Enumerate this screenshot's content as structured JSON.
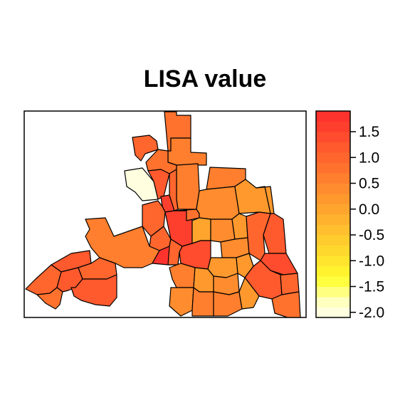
{
  "title": "LISA value",
  "legend": {
    "range": [
      -2.1,
      1.9
    ],
    "colors": [
      "#FFFFE0",
      "#FFFFBF",
      "#FFFF80",
      "#FFFF40",
      "#FFF22E",
      "#FFE52E",
      "#FFD82E",
      "#FFCC2E",
      "#FFBF2E",
      "#FFB22E",
      "#FFA52E",
      "#FF992E",
      "#FF8C2E",
      "#FF7F2E",
      "#FF722E",
      "#FF662E",
      "#FF592E",
      "#FF4C2E",
      "#FF3F2E",
      "#FF332E"
    ],
    "ticks": [
      {
        "value": 1.5,
        "label": "1.5"
      },
      {
        "value": 1.0,
        "label": "1.0"
      },
      {
        "value": 0.5,
        "label": "0.5"
      },
      {
        "value": 0.0,
        "label": "0.0"
      },
      {
        "value": -0.5,
        "label": "-0.5"
      },
      {
        "value": -1.0,
        "label": "-1.0"
      },
      {
        "value": -1.5,
        "label": "-1.5"
      },
      {
        "value": -2.0,
        "label": "-2.0"
      }
    ]
  },
  "regions": [
    {
      "id": "n-strip",
      "value": 0.8
    },
    {
      "id": "nw-top",
      "value": 0.9
    },
    {
      "id": "n-b",
      "value": 0.6
    },
    {
      "id": "n-c",
      "value": 0.7
    },
    {
      "id": "n-d",
      "value": 0.5
    },
    {
      "id": "n-e",
      "value": 0.6
    },
    {
      "id": "pale",
      "value": -2.0
    },
    {
      "id": "c1",
      "value": 1.2
    },
    {
      "id": "c2",
      "value": 1.5
    },
    {
      "id": "c3",
      "value": 1.0
    },
    {
      "id": "c4",
      "value": 0.9
    },
    {
      "id": "c-hot",
      "value": 1.6
    },
    {
      "id": "c5",
      "value": 0.7
    },
    {
      "id": "c6",
      "value": 0.9
    },
    {
      "id": "c7",
      "value": 0.4
    },
    {
      "id": "c8",
      "value": 0.2
    },
    {
      "id": "c9",
      "value": 0.1
    },
    {
      "id": "c10",
      "value": 0.0
    },
    {
      "id": "c11",
      "value": 0.3
    },
    {
      "id": "c12",
      "value": 0.1
    },
    {
      "id": "e1",
      "value": 0.3
    },
    {
      "id": "e2",
      "value": 0.1
    },
    {
      "id": "e3",
      "value": 0.2
    },
    {
      "id": "e4",
      "value": 1.0
    },
    {
      "id": "e5",
      "value": 1.2
    },
    {
      "id": "e6",
      "value": 1.3
    },
    {
      "id": "e7",
      "value": 1.1
    },
    {
      "id": "e8",
      "value": 1.0
    },
    {
      "id": "e9",
      "value": 0.8
    },
    {
      "id": "w-big",
      "value": 0.6
    },
    {
      "id": "w-hot",
      "value": 1.8
    },
    {
      "id": "w1",
      "value": 1.1
    },
    {
      "id": "w2",
      "value": 1.0
    },
    {
      "id": "w3",
      "value": 1.2
    },
    {
      "id": "w4",
      "value": 0.9
    },
    {
      "id": "w5",
      "value": 0.8
    },
    {
      "id": "w6",
      "value": 1.1
    },
    {
      "id": "s1",
      "value": 1.4
    },
    {
      "id": "s2",
      "value": 0.9
    },
    {
      "id": "s3",
      "value": 0.6
    },
    {
      "id": "s4",
      "value": 0.2
    },
    {
      "id": "s5",
      "value": 0.3
    },
    {
      "id": "s6",
      "value": 0.4
    },
    {
      "id": "s7",
      "value": 0.5
    },
    {
      "id": "s8",
      "value": 0.6
    },
    {
      "id": "s9",
      "value": 0.2
    }
  ]
}
